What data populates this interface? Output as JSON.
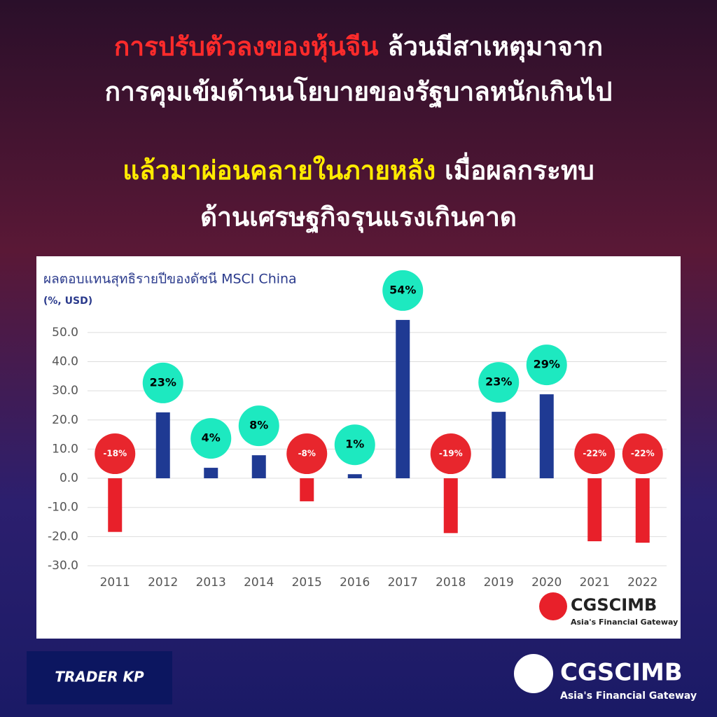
{
  "headline": {
    "line1_highlight": "การปรับตัวลงของหุ้นจีน",
    "line1_rest": " ล้วนมีสาเหตุมาจาก",
    "line2": "การคุมเข้มด้านนโยบายของรัฐบาลหนักเกินไป",
    "line3_highlight": "แล้วมาผ่อนคลายในภายหลัง",
    "line3_rest": " เมื่อผลกระทบ",
    "line4": "ด้านเศรษฐกิจรุนแรงเกินคาด"
  },
  "chart_data": {
    "type": "bar",
    "title": "ผลตอบแทนสุทธิรายปีของดัชนี MSCI China",
    "subtitle": "(%, USD)",
    "categories": [
      "2011",
      "2012",
      "2013",
      "2014",
      "2015",
      "2016",
      "2017",
      "2018",
      "2019",
      "2020",
      "2021",
      "2022"
    ],
    "values": [
      -18.4,
      22.6,
      3.6,
      7.9,
      -7.9,
      1.4,
      54.3,
      -18.8,
      22.8,
      28.8,
      -21.6,
      -22.1
    ],
    "value_labels": [
      "-18%",
      "23%",
      "4%",
      "8%",
      "-8%",
      "1%",
      "54%",
      "-19%",
      "23%",
      "29%",
      "-22%",
      "-22%"
    ],
    "positive_color": "#1f3a93",
    "negative_color": "#e8202a",
    "positive_label_color": "#1de9c0",
    "negative_label_color": "#e8262d",
    "ylim": [
      -30,
      55
    ],
    "yticks": [
      {
        "value": -30,
        "label": "-30.0"
      },
      {
        "value": -20,
        "label": "-20.0"
      },
      {
        "value": -10,
        "label": "-10.0"
      },
      {
        "value": 0,
        "label": "0.0"
      },
      {
        "value": 10,
        "label": "10.0"
      },
      {
        "value": 20,
        "label": "20.0"
      },
      {
        "value": 30,
        "label": "30.0"
      },
      {
        "value": 40,
        "label": "40.0"
      },
      {
        "value": 50,
        "label": "50.0"
      }
    ],
    "grid": true
  },
  "logos": {
    "chart_brand": "CGSCIMB",
    "chart_tagline": "Asia's Financial Gateway",
    "footer_brand": "CGSCIMB",
    "footer_tagline": "Asia's Financial Gateway",
    "trader": "TRADER KP"
  }
}
